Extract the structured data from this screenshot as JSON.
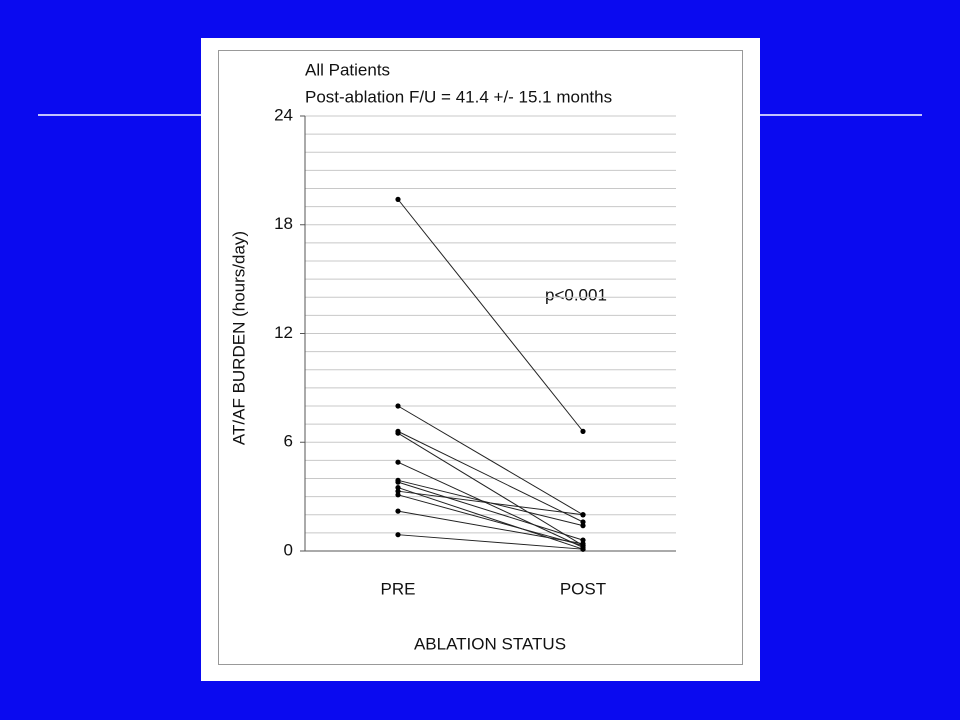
{
  "chart_data": {
    "type": "line",
    "title": "All Patients",
    "subtitle": "Post-ablation F/U = 41.4 +/- 15.1 months",
    "annotation": "p<0.001",
    "x_label": "ABLATION STATUS",
    "y_label": "AT/AF BURDEN (hours/day)",
    "categories": [
      "PRE",
      "POST"
    ],
    "color": "#222222",
    "series": [
      {
        "values": [
          19.4,
          6.6
        ]
      },
      {
        "values": [
          8.0,
          2.0
        ]
      },
      {
        "values": [
          6.6,
          1.6
        ]
      },
      {
        "values": [
          6.5,
          0.3
        ]
      },
      {
        "values": [
          4.9,
          0.2
        ]
      },
      {
        "values": [
          3.9,
          1.4
        ]
      },
      {
        "values": [
          3.8,
          0.6
        ]
      },
      {
        "values": [
          3.5,
          0.1
        ]
      },
      {
        "values": [
          3.3,
          2.0
        ]
      },
      {
        "values": [
          3.1,
          0.3
        ]
      },
      {
        "values": [
          2.2,
          0.4
        ]
      },
      {
        "values": [
          0.9,
          0.1
        ]
      }
    ],
    "ylim": [
      0,
      24
    ],
    "yticks": [
      0,
      6,
      12,
      18,
      24
    ],
    "minor_yticks": [
      1,
      2,
      3,
      4,
      5,
      7,
      8,
      9,
      10,
      11,
      13,
      14,
      15,
      16,
      17,
      19,
      20,
      21,
      22,
      23
    ],
    "grid": true
  }
}
